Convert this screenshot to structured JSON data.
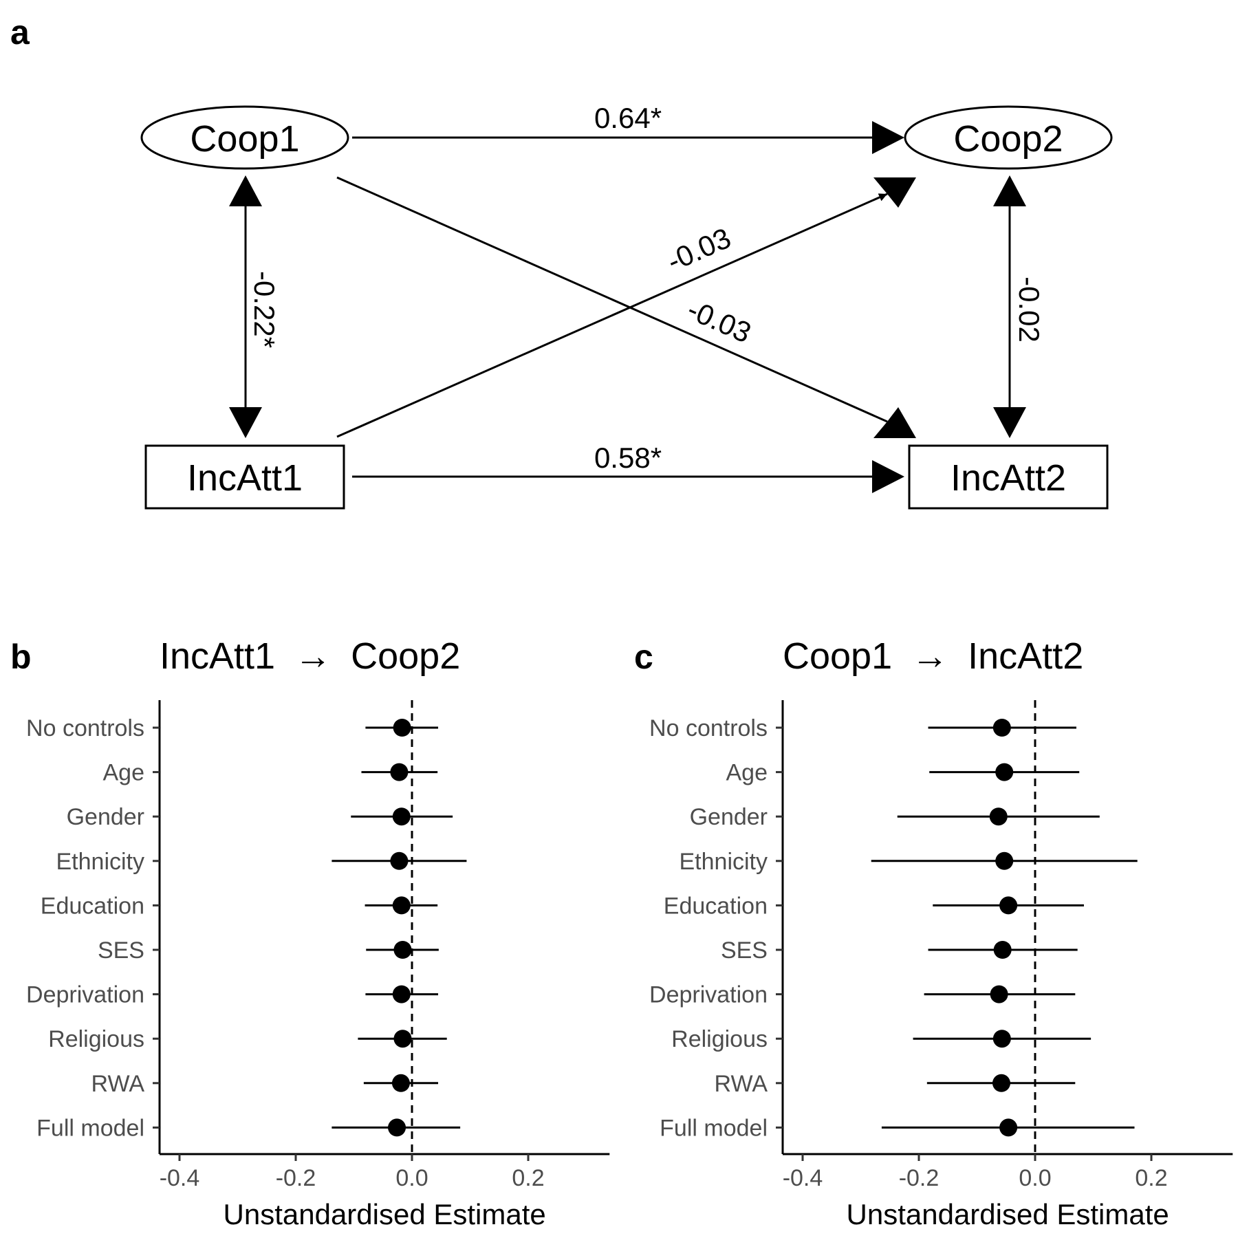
{
  "diagram": {
    "panel_label": "a",
    "nodes": {
      "coop1": "Coop1",
      "coop2": "Coop2",
      "incatt1": "IncAtt1",
      "incatt2": "IncAtt2"
    },
    "edges": {
      "coop1_coop2": "0.64*",
      "incatt1_incatt2": "0.58*",
      "coop1_incatt1": "-0.22*",
      "coop2_incatt2": "-0.02",
      "incatt1_coop2": "-0.03",
      "coop1_incatt2": "-0.03"
    }
  },
  "chart_data": [
    {
      "type": "scatter",
      "panel_label": "b",
      "title_from": "IncAtt1",
      "title_arrow": "→",
      "title_to": "Coop2",
      "xlabel": "Unstandardised Estimate",
      "xlim": [
        -0.43,
        0.34
      ],
      "xticks": [
        -0.4,
        -0.2,
        0.0,
        0.2
      ],
      "xtick_labels": [
        "-0.4",
        "-0.2",
        "0.0",
        "0.2"
      ],
      "reference_line": 0,
      "categories": [
        "No controls",
        "Age",
        "Gender",
        "Ethnicity",
        "Education",
        "SES",
        "Deprivation",
        "Religious",
        "RWA",
        "Full model"
      ],
      "estimates": [
        -0.017,
        -0.022,
        -0.018,
        -0.022,
        -0.018,
        -0.016,
        -0.018,
        -0.016,
        -0.019,
        -0.026
      ],
      "ci_low": [
        -0.08,
        -0.087,
        -0.105,
        -0.138,
        -0.081,
        -0.079,
        -0.08,
        -0.093,
        -0.083,
        -0.138
      ],
      "ci_high": [
        0.045,
        0.044,
        0.07,
        0.094,
        0.044,
        0.046,
        0.045,
        0.06,
        0.045,
        0.083
      ]
    },
    {
      "type": "scatter",
      "panel_label": "c",
      "title_from": "Coop1",
      "title_arrow": "→",
      "title_to": "IncAtt2",
      "xlabel": "Unstandardised Estimate",
      "xlim": [
        -0.43,
        0.34
      ],
      "xticks": [
        -0.4,
        -0.2,
        0.0,
        0.2
      ],
      "xtick_labels": [
        "-0.4",
        "-0.2",
        "0.0",
        "0.2"
      ],
      "reference_line": 0,
      "categories": [
        "No controls",
        "Age",
        "Gender",
        "Ethnicity",
        "Education",
        "SES",
        "Deprivation",
        "Religious",
        "RWA",
        "Full model"
      ],
      "estimates": [
        -0.057,
        -0.053,
        -0.063,
        -0.053,
        -0.046,
        -0.056,
        -0.062,
        -0.057,
        -0.058,
        -0.046
      ],
      "ci_low": [
        -0.184,
        -0.182,
        -0.237,
        -0.282,
        -0.176,
        -0.184,
        -0.191,
        -0.21,
        -0.186,
        -0.264
      ],
      "ci_high": [
        0.071,
        0.076,
        0.111,
        0.176,
        0.084,
        0.073,
        0.069,
        0.096,
        0.069,
        0.171
      ]
    }
  ]
}
